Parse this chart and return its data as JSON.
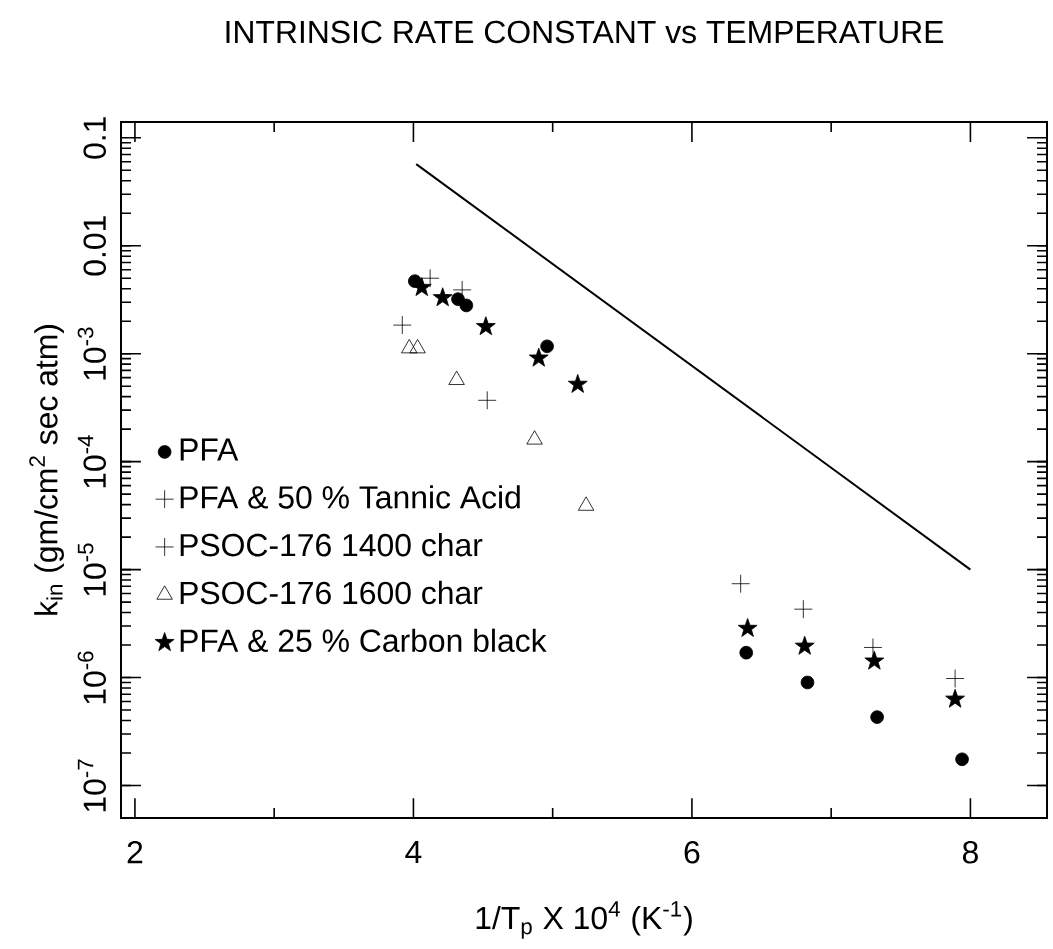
{
  "chart_data": {
    "type": "scatter",
    "title": "INTRINSIC RATE CONSTANT vs TEMPERATURE",
    "xlabel": "1/T$_{p}$ X 10$^{4}$ (K$^{-1}$)",
    "ylabel": "k$_{in}$ (gm/cm$^{2}$ sec atm)",
    "log": "y",
    "legend": "bottom left",
    "xlim": [
      1.9,
      8.55
    ],
    "ylim": [
      5e-08,
      0.14
    ],
    "xticks": [
      2,
      4,
      6,
      8
    ],
    "yticks": [
      {
        "value": 1e-07,
        "label": "10$^{-7}$"
      },
      {
        "value": 1e-06,
        "label": "10$^{-6}$"
      },
      {
        "value": 1e-05,
        "label": "10$^{-5}$"
      },
      {
        "value": 0.0001,
        "label": "10$^{-4}$"
      },
      {
        "value": 0.001,
        "label": "10$^{-3}$"
      },
      0.01,
      0.1
    ],
    "series": [
      {
        "name": "PFA",
        "color": "#000000",
        "marker": "circle",
        "x": [
          4.01,
          4.32,
          4.38,
          4.96,
          6.39,
          6.83,
          7.33,
          7.94
        ],
        "values": [
          0.0047,
          0.0032,
          0.0028,
          0.00117,
          1.7e-06,
          9e-07,
          4.3e-07,
          1.75e-07
        ]
      },
      {
        "name": "PFA & 50 % Tannic Acid",
        "color": "#000000",
        "marker": "cross",
        "x": [
          4.12,
          4.35,
          6.35,
          6.8,
          7.3,
          7.89
        ],
        "values": [
          0.005,
          0.0039,
          7.4e-06,
          4.3e-06,
          1.9e-06,
          9.8e-07
        ]
      },
      {
        "name": "PSOC-176 1400 char",
        "color": "#000000",
        "marker": "cross",
        "x": [
          3.92,
          4.53
        ],
        "values": [
          0.00184,
          0.00037
        ]
      },
      {
        "name": "PSOC-176 1600 char",
        "color": "#000000",
        "marker": "triangle",
        "x": [
          3.97,
          4.03,
          4.31,
          4.87,
          5.24
        ],
        "values": [
          0.00112,
          0.00112,
          0.00057,
          0.00016,
          3.9e-05
        ]
      },
      {
        "name": "PFA & 25 % Carbon black",
        "color": "#000000",
        "marker": "star",
        "x": [
          4.06,
          4.21,
          4.52,
          4.9,
          5.18,
          6.4,
          6.81,
          7.31,
          7.89
        ],
        "values": [
          0.0041,
          0.0033,
          0.00178,
          0.00091,
          0.00052,
          2.85e-06,
          1.95e-06,
          1.42e-06,
          6.3e-07
        ]
      },
      {
        "type": "line",
        "color": "#000000",
        "marker": "none",
        "line_style": "solid",
        "x": [
          4.02,
          8.0
        ],
        "values": [
          0.057,
          1e-05
        ]
      }
    ]
  }
}
